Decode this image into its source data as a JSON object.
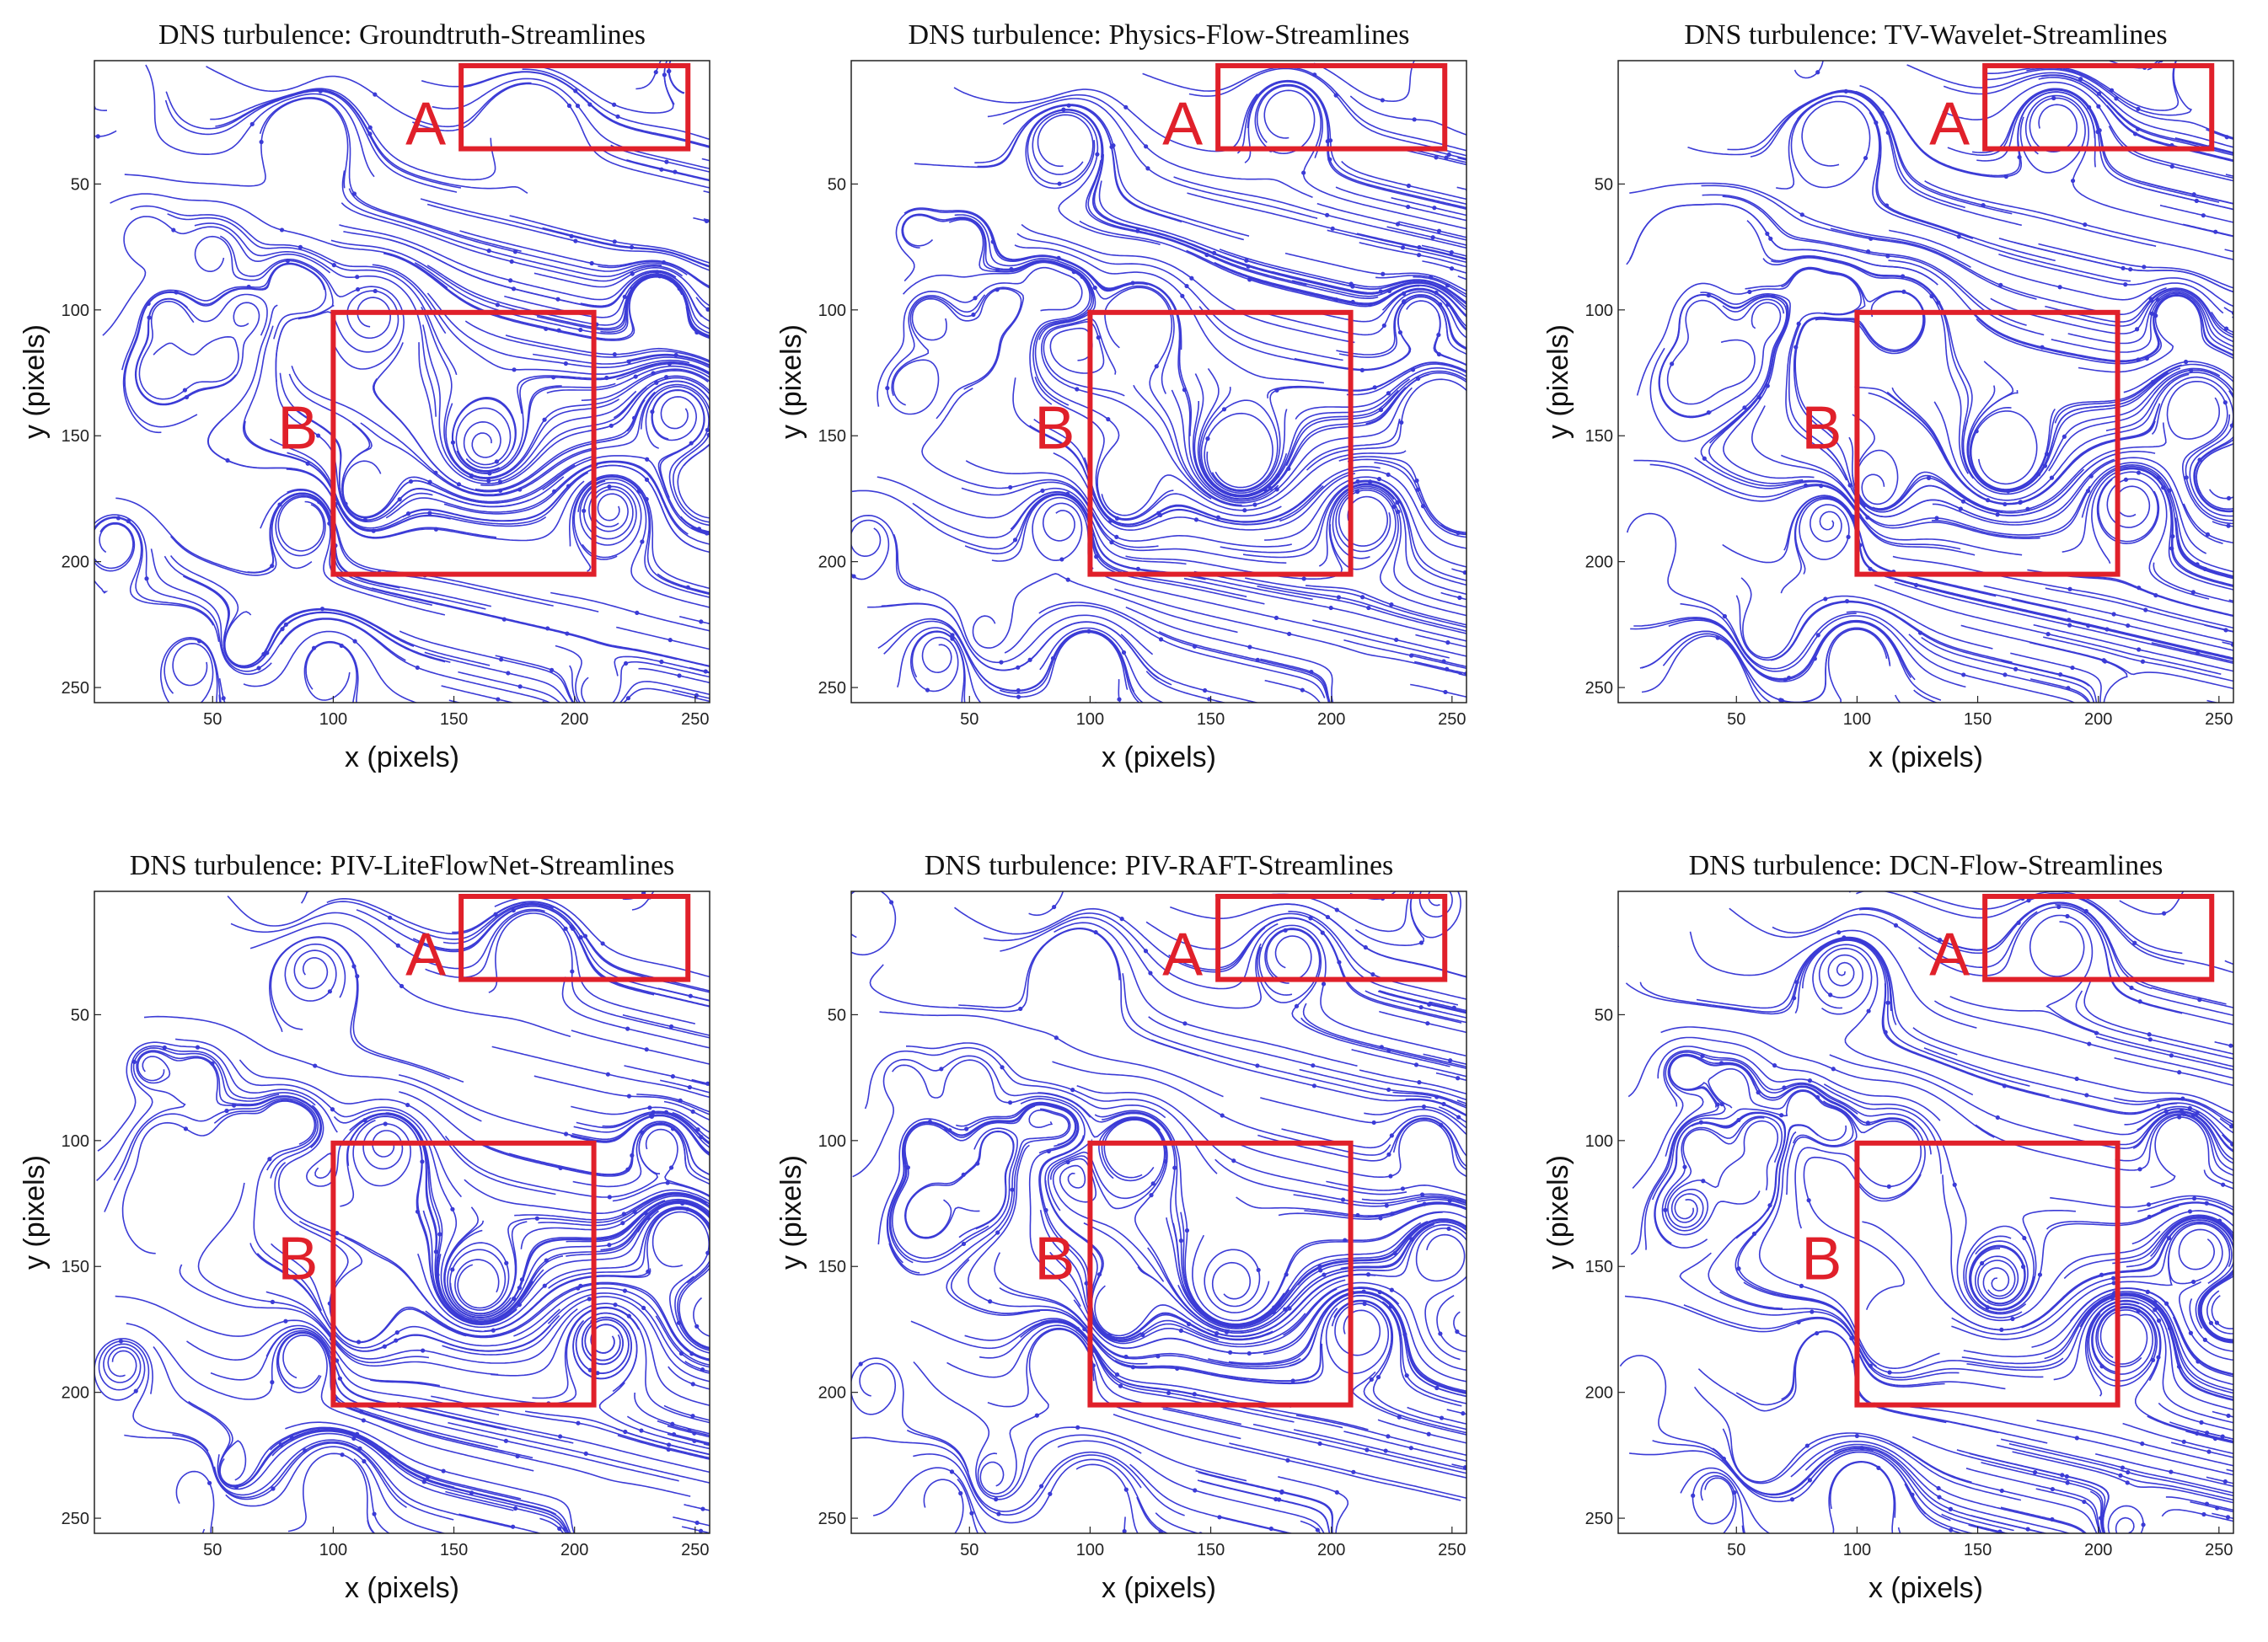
{
  "figure": {
    "colors": {
      "streamline": "#3b3bd6",
      "highlight_box": "#e0202a",
      "plot_border": "#222222",
      "background": "#ffffff"
    }
  },
  "chart_data": [
    {
      "type": "streamplot",
      "title": "DNS turbulence:  Groundtruth-Streamlines",
      "xlabel": "x (pixels)",
      "ylabel": "y (pixels)",
      "xlim": [
        1,
        256
      ],
      "ylim": [
        1,
        256
      ],
      "y_inverted": true,
      "xticks": [
        50,
        100,
        150,
        200,
        250
      ],
      "yticks": [
        50,
        100,
        150,
        200,
        250
      ],
      "grid": false,
      "regions": [
        {
          "label": "A",
          "x": [
            153,
            247
          ],
          "y": [
            3,
            36
          ]
        },
        {
          "label": "B",
          "x": [
            100,
            208
          ],
          "y": [
            101,
            205
          ]
        }
      ]
    },
    {
      "type": "streamplot",
      "title": "DNS turbulence:  Physics-Flow-Streamlines",
      "xlabel": "x (pixels)",
      "ylabel": "y (pixels)",
      "xlim": [
        1,
        256
      ],
      "ylim": [
        1,
        256
      ],
      "y_inverted": true,
      "xticks": [
        50,
        100,
        150,
        200,
        250
      ],
      "yticks": [
        50,
        100,
        150,
        200,
        250
      ],
      "grid": false,
      "regions": [
        {
          "label": "A",
          "x": [
            153,
            247
          ],
          "y": [
            3,
            36
          ]
        },
        {
          "label": "B",
          "x": [
            100,
            208
          ],
          "y": [
            101,
            205
          ]
        }
      ]
    },
    {
      "type": "streamplot",
      "title": "DNS turbulence:  TV-Wavelet-Streamlines",
      "xlabel": "x (pixels)",
      "ylabel": "y (pixels)",
      "xlim": [
        1,
        256
      ],
      "ylim": [
        1,
        256
      ],
      "y_inverted": true,
      "xticks": [
        50,
        100,
        150,
        200,
        250
      ],
      "yticks": [
        50,
        100,
        150,
        200,
        250
      ],
      "grid": false,
      "regions": [
        {
          "label": "A",
          "x": [
            153,
            247
          ],
          "y": [
            3,
            36
          ]
        },
        {
          "label": "B",
          "x": [
            100,
            208
          ],
          "y": [
            101,
            205
          ]
        }
      ]
    },
    {
      "type": "streamplot",
      "title": "DNS turbulence:  PIV-LiteFlowNet-Streamlines",
      "xlabel": "x (pixels)",
      "ylabel": "y (pixels)",
      "xlim": [
        1,
        256
      ],
      "ylim": [
        1,
        256
      ],
      "y_inverted": true,
      "xticks": [
        50,
        100,
        150,
        200,
        250
      ],
      "yticks": [
        50,
        100,
        150,
        200,
        250
      ],
      "grid": false,
      "regions": [
        {
          "label": "A",
          "x": [
            153,
            247
          ],
          "y": [
            3,
            36
          ]
        },
        {
          "label": "B",
          "x": [
            100,
            208
          ],
          "y": [
            101,
            205
          ]
        }
      ]
    },
    {
      "type": "streamplot",
      "title": "DNS turbulence:  PIV-RAFT-Streamlines",
      "xlabel": "x (pixels)",
      "ylabel": "y (pixels)",
      "xlim": [
        1,
        256
      ],
      "ylim": [
        1,
        256
      ],
      "y_inverted": true,
      "xticks": [
        50,
        100,
        150,
        200,
        250
      ],
      "yticks": [
        50,
        100,
        150,
        200,
        250
      ],
      "grid": false,
      "regions": [
        {
          "label": "A",
          "x": [
            153,
            247
          ],
          "y": [
            3,
            36
          ]
        },
        {
          "label": "B",
          "x": [
            100,
            208
          ],
          "y": [
            101,
            205
          ]
        }
      ]
    },
    {
      "type": "streamplot",
      "title": "DNS turbulence:  DCN-Flow-Streamlines",
      "xlabel": "x (pixels)",
      "ylabel": "y (pixels)",
      "xlim": [
        1,
        256
      ],
      "ylim": [
        1,
        256
      ],
      "y_inverted": true,
      "xticks": [
        50,
        100,
        150,
        200,
        250
      ],
      "yticks": [
        50,
        100,
        150,
        200,
        250
      ],
      "grid": false,
      "regions": [
        {
          "label": "A",
          "x": [
            153,
            247
          ],
          "y": [
            3,
            36
          ]
        },
        {
          "label": "B",
          "x": [
            100,
            208
          ],
          "y": [
            101,
            205
          ]
        }
      ]
    }
  ]
}
